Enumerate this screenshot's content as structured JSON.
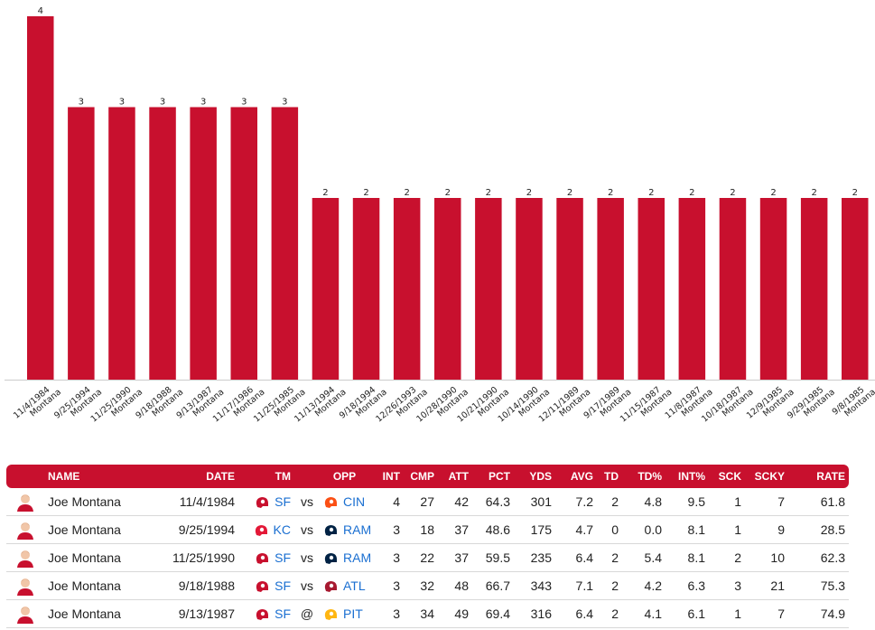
{
  "chart_data": {
    "type": "bar",
    "categories": [
      "11/4/1984",
      "9/25/1994",
      "11/25/1990",
      "9/18/1988",
      "9/13/1987",
      "11/17/1986",
      "11/25/1985",
      "11/13/1994",
      "9/18/1994",
      "12/26/1993",
      "10/28/1990",
      "10/21/1990",
      "10/14/1990",
      "12/11/1989",
      "9/17/1989",
      "11/15/1987",
      "11/8/1987",
      "10/18/1987",
      "12/9/1985",
      "9/29/1985",
      "9/8/1985"
    ],
    "sublabels": [
      "Montana",
      "Montana",
      "Montana",
      "Montana",
      "Montana",
      "Montana",
      "Montana",
      "Montana",
      "Montana",
      "Montana",
      "Montana",
      "Montana",
      "Montana",
      "Montana",
      "Montana",
      "Montana",
      "Montana",
      "Montana",
      "Montana",
      "Montana",
      "Montana"
    ],
    "values": [
      4,
      3,
      3,
      3,
      3,
      3,
      3,
      2,
      2,
      2,
      2,
      2,
      2,
      2,
      2,
      2,
      2,
      2,
      2,
      2,
      2
    ],
    "ylim": [
      0,
      4
    ],
    "grid": false,
    "color": "#c8102e"
  },
  "table": {
    "headers": [
      "NAME",
      "DATE",
      "TM",
      "",
      "OPP",
      "INT",
      "CMP",
      "ATT",
      "PCT",
      "YDS",
      "AVG",
      "TD",
      "TD%",
      "INT%",
      "SCK",
      "SCKY",
      "RATE"
    ],
    "rows": [
      {
        "name": "Joe Montana",
        "date": "11/4/1984",
        "tm": "SF",
        "ha": "vs",
        "opp": "CIN",
        "int": "4",
        "cmp": "27",
        "att": "42",
        "pct": "64.3",
        "yds": "301",
        "avg": "7.2",
        "td": "2",
        "tdp": "4.8",
        "intp": "9.5",
        "sck": "1",
        "scky": "7",
        "rate": "61.8",
        "tm_color": "#c8102e",
        "opp_color": "#fb4f14"
      },
      {
        "name": "Joe Montana",
        "date": "9/25/1994",
        "tm": "KC",
        "ha": "vs",
        "opp": "RAM",
        "int": "3",
        "cmp": "18",
        "att": "37",
        "pct": "48.6",
        "yds": "175",
        "avg": "4.7",
        "td": "0",
        "tdp": "0.0",
        "intp": "8.1",
        "sck": "1",
        "scky": "9",
        "rate": "28.5",
        "tm_color": "#e31837",
        "opp_color": "#002244"
      },
      {
        "name": "Joe Montana",
        "date": "11/25/1990",
        "tm": "SF",
        "ha": "vs",
        "opp": "RAM",
        "int": "3",
        "cmp": "22",
        "att": "37",
        "pct": "59.5",
        "yds": "235",
        "avg": "6.4",
        "td": "2",
        "tdp": "5.4",
        "intp": "8.1",
        "sck": "2",
        "scky": "10",
        "rate": "62.3",
        "tm_color": "#c8102e",
        "opp_color": "#002244"
      },
      {
        "name": "Joe Montana",
        "date": "9/18/1988",
        "tm": "SF",
        "ha": "vs",
        "opp": "ATL",
        "int": "3",
        "cmp": "32",
        "att": "48",
        "pct": "66.7",
        "yds": "343",
        "avg": "7.1",
        "td": "2",
        "tdp": "4.2",
        "intp": "6.3",
        "sck": "3",
        "scky": "21",
        "rate": "75.3",
        "tm_color": "#c8102e",
        "opp_color": "#a71930"
      },
      {
        "name": "Joe Montana",
        "date": "9/13/1987",
        "tm": "SF",
        "ha": "@",
        "opp": "PIT",
        "int": "3",
        "cmp": "34",
        "att": "49",
        "pct": "69.4",
        "yds": "316",
        "avg": "6.4",
        "td": "2",
        "tdp": "4.1",
        "intp": "6.1",
        "sck": "1",
        "scky": "7",
        "rate": "74.9",
        "tm_color": "#c8102e",
        "opp_color": "#ffb612"
      }
    ]
  }
}
